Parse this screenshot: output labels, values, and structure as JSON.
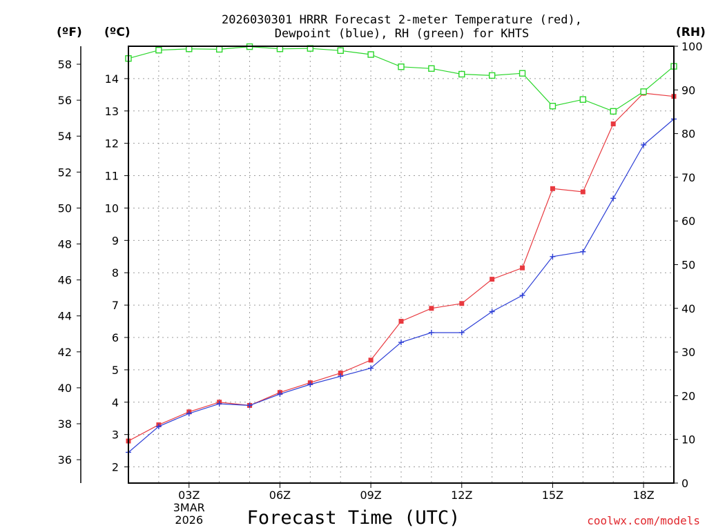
{
  "chart_data": {
    "type": "line",
    "title_lines": [
      "2026030301 HRRR Forecast 2-meter Temperature (red),",
      "Dewpoint (blue), RH (green) for KHTS"
    ],
    "xlabel": "Forecast Time (UTC)",
    "credit": "coolwx.com/models",
    "unit_labels": {
      "fahrenheit": "(ºF)",
      "celsius": "(ºC)",
      "rh": "(RH)"
    },
    "x_range": [
      1,
      19
    ],
    "x_ticks": [
      {
        "x": 3,
        "label": "03Z",
        "sub": [
          "3MAR",
          "2026"
        ]
      },
      {
        "x": 6,
        "label": "06Z"
      },
      {
        "x": 9,
        "label": "09Z"
      },
      {
        "x": 12,
        "label": "12Z"
      },
      {
        "x": 15,
        "label": "15Z"
      },
      {
        "x": 18,
        "label": "18Z"
      }
    ],
    "celsius_range": [
      1.5,
      15.0
    ],
    "celsius_ticks": [
      2,
      3,
      4,
      5,
      6,
      7,
      8,
      9,
      10,
      11,
      12,
      13,
      14
    ],
    "fahrenheit_ticks": [
      36,
      38,
      40,
      42,
      44,
      46,
      48,
      50,
      52,
      54,
      56,
      58
    ],
    "rh_range": [
      0,
      100
    ],
    "rh_ticks": [
      0,
      10,
      20,
      30,
      40,
      50,
      60,
      70,
      80,
      90,
      100
    ],
    "hours": [
      1,
      2,
      3,
      4,
      5,
      6,
      7,
      8,
      9,
      10,
      11,
      12,
      13,
      14,
      15,
      16,
      17,
      18,
      19
    ],
    "series": [
      {
        "name": "Temperature",
        "axis": "celsius",
        "color": "#e8393f",
        "marker": "filled-square",
        "values": [
          2.8,
          3.3,
          3.7,
          4.0,
          3.9,
          4.3,
          4.6,
          4.9,
          5.3,
          6.5,
          6.9,
          7.05,
          7.8,
          8.15,
          10.6,
          10.5,
          12.6,
          13.55,
          13.45
        ]
      },
      {
        "name": "Dewpoint",
        "axis": "celsius",
        "color": "#2d3fd6",
        "marker": "plus",
        "values": [
          2.45,
          3.25,
          3.65,
          3.95,
          3.9,
          4.25,
          4.55,
          4.8,
          5.05,
          5.85,
          6.15,
          6.15,
          6.8,
          7.3,
          8.5,
          8.65,
          10.3,
          11.95,
          12.75
        ]
      },
      {
        "name": "RH",
        "axis": "rh",
        "color": "#2ad62a",
        "marker": "open-square",
        "values": [
          97.2,
          99.1,
          99.4,
          99.3,
          99.9,
          99.4,
          99.5,
          99.0,
          98.1,
          95.3,
          94.9,
          93.6,
          93.3,
          93.8,
          86.3,
          87.8,
          85.1,
          89.6,
          95.4
        ]
      }
    ]
  }
}
